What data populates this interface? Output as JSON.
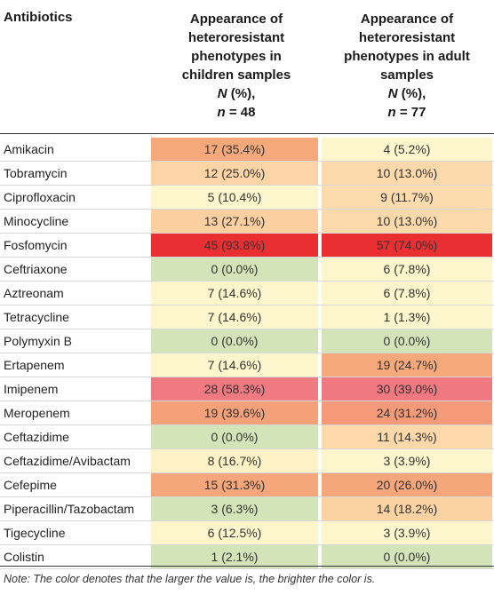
{
  "header": {
    "col0": "Antibiotics",
    "col1": {
      "l1": "Appearance of",
      "l2": "heteroresistant",
      "l3": "phenotypes in",
      "l4": "children samples",
      "l5a": "N",
      "l5b": " (%),",
      "l6a": "n",
      "l6b": " = 48"
    },
    "col2": {
      "l1": "Appearance of",
      "l2": "heteroresistant",
      "l3": "phenotypes in adult",
      "l4": "samples",
      "l5a": "N",
      "l5b": " (%),",
      "l6a": "n",
      "l6b": " = 77"
    }
  },
  "rows": [
    {
      "name": "Amikacin",
      "children": "17 (35.4%)",
      "adult": "4 (5.2%)",
      "children_color": "#f5a97b",
      "adult_color": "#fdf6cc"
    },
    {
      "name": "Tobramycin",
      "children": "12 (25.0%)",
      "adult": "10 (13.0%)",
      "children_color": "#fcd4a5",
      "adult_color": "#fcd9ab"
    },
    {
      "name": "Ciprofloxacin",
      "children": "5 (10.4%)",
      "adult": "9 (11.7%)",
      "children_color": "#fdf5cc",
      "adult_color": "#fcdbad"
    },
    {
      "name": "Minocycline",
      "children": "13 (27.1%)",
      "adult": "10 (13.0%)",
      "children_color": "#fccfa0",
      "adult_color": "#fcd9ab"
    },
    {
      "name": "Fosfomycin",
      "children": "45 (93.8%)",
      "adult": "57 (74.0%)",
      "children_color": "#ea2f33",
      "adult_color": "#ea2f33"
    },
    {
      "name": "Ceftriaxone",
      "children": "0 (0.0%)",
      "adult": "6 (7.8%)",
      "children_color": "#d3e4b8",
      "adult_color": "#fdf5cc"
    },
    {
      "name": "Aztreonam",
      "children": "7 (14.6%)",
      "adult": "6 (7.8%)",
      "children_color": "#fdf5cc",
      "adult_color": "#fdf5cc"
    },
    {
      "name": "Tetracycline",
      "children": "7 (14.6%)",
      "adult": "1 (1.3%)",
      "children_color": "#fdf5cc",
      "adult_color": "#fdf6cc"
    },
    {
      "name": "Polymyxin B",
      "children": "0 (0.0%)",
      "adult": "0 (0.0%)",
      "children_color": "#d3e4b8",
      "adult_color": "#d3e4b8"
    },
    {
      "name": "Ertapenem",
      "children": "7 (14.6%)",
      "adult": "19 (24.7%)",
      "children_color": "#fdf5cc",
      "adult_color": "#f5a97b"
    },
    {
      "name": "Imipenem",
      "children": "28 (58.3%)",
      "adult": "30 (39.0%)",
      "children_color": "#ef7a82",
      "adult_color": "#f07880"
    },
    {
      "name": "Meropenem",
      "children": "19 (39.6%)",
      "adult": "24 (31.2%)",
      "children_color": "#f4a17a",
      "adult_color": "#f49a79"
    },
    {
      "name": "Ceftazidime",
      "children": "0 (0.0%)",
      "adult": "11 (14.3%)",
      "children_color": "#d3e4b8",
      "adult_color": "#fcd8aa"
    },
    {
      "name": "Ceftazidime/Avibactam",
      "children": "8 (16.7%)",
      "adult": "3 (3.9%)",
      "children_color": "#fdf1c6",
      "adult_color": "#fdf6cc"
    },
    {
      "name": "Cefepime",
      "children": "15 (31.3%)",
      "adult": "20 (26.0%)",
      "children_color": "#f5a67a",
      "adult_color": "#f5a67a"
    },
    {
      "name": "Piperacillin/Tazobactam",
      "children": "3 (6.3%)",
      "adult": "14 (18.2%)",
      "children_color": "#d3e4b8",
      "adult_color": "#fcd2a3"
    },
    {
      "name": "Tigecycline",
      "children": "6 (12.5%)",
      "adult": "3 (3.9%)",
      "children_color": "#fdf5cc",
      "adult_color": "#fdf6cc"
    },
    {
      "name": "Colistin",
      "children": "1 (2.1%)",
      "adult": "0 (0.0%)",
      "children_color": "#d3e4b8",
      "adult_color": "#d3e4b8"
    }
  ],
  "note": "Note: The color denotes that the larger the value is, the brighter the color is."
}
